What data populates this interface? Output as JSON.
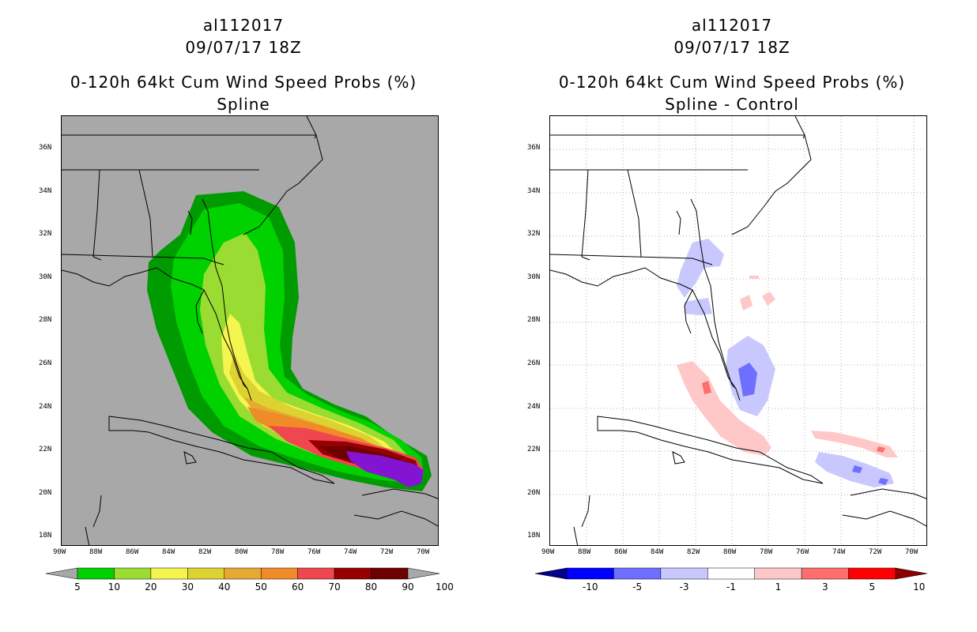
{
  "left": {
    "storm_id": "al112017",
    "datetime": "09/07/17 18Z",
    "product": "0-120h 64kt Cum Wind Speed Probs (%)",
    "subtitle": "Spline",
    "colorbar": {
      "labels": [
        "5",
        "10",
        "20",
        "30",
        "40",
        "50",
        "60",
        "70",
        "80",
        "90",
        "100"
      ],
      "colors": [
        "#009b00",
        "#00d200",
        "#9bdc32",
        "#f5f550",
        "#dcd232",
        "#e6aa32",
        "#f08c28",
        "#f04650",
        "#960000",
        "#6e0000",
        "#8214d2"
      ]
    }
  },
  "right": {
    "storm_id": "al112017",
    "datetime": "09/07/17 18Z",
    "product": "0-120h 64kt Cum Wind Speed Probs (%)",
    "subtitle": "Spline - Control",
    "colorbar": {
      "labels": [
        "-10",
        "-5",
        "-3",
        "-1",
        "1",
        "3",
        "5",
        "10"
      ],
      "colors": [
        "#00008c",
        "#0000ff",
        "#6e6eff",
        "#c8c8ff",
        "#ffffff",
        "#ffc8c8",
        "#ff6e6e",
        "#ff0000",
        "#8c0000"
      ]
    }
  },
  "axes": {
    "lat_labels": [
      "36N",
      "34N",
      "32N",
      "30N",
      "28N",
      "26N",
      "24N",
      "22N",
      "20N",
      "18N"
    ],
    "lon_labels": [
      "90W",
      "88W",
      "86W",
      "84W",
      "82W",
      "80W",
      "78W",
      "76W",
      "74W",
      "72W",
      "70W"
    ]
  }
}
